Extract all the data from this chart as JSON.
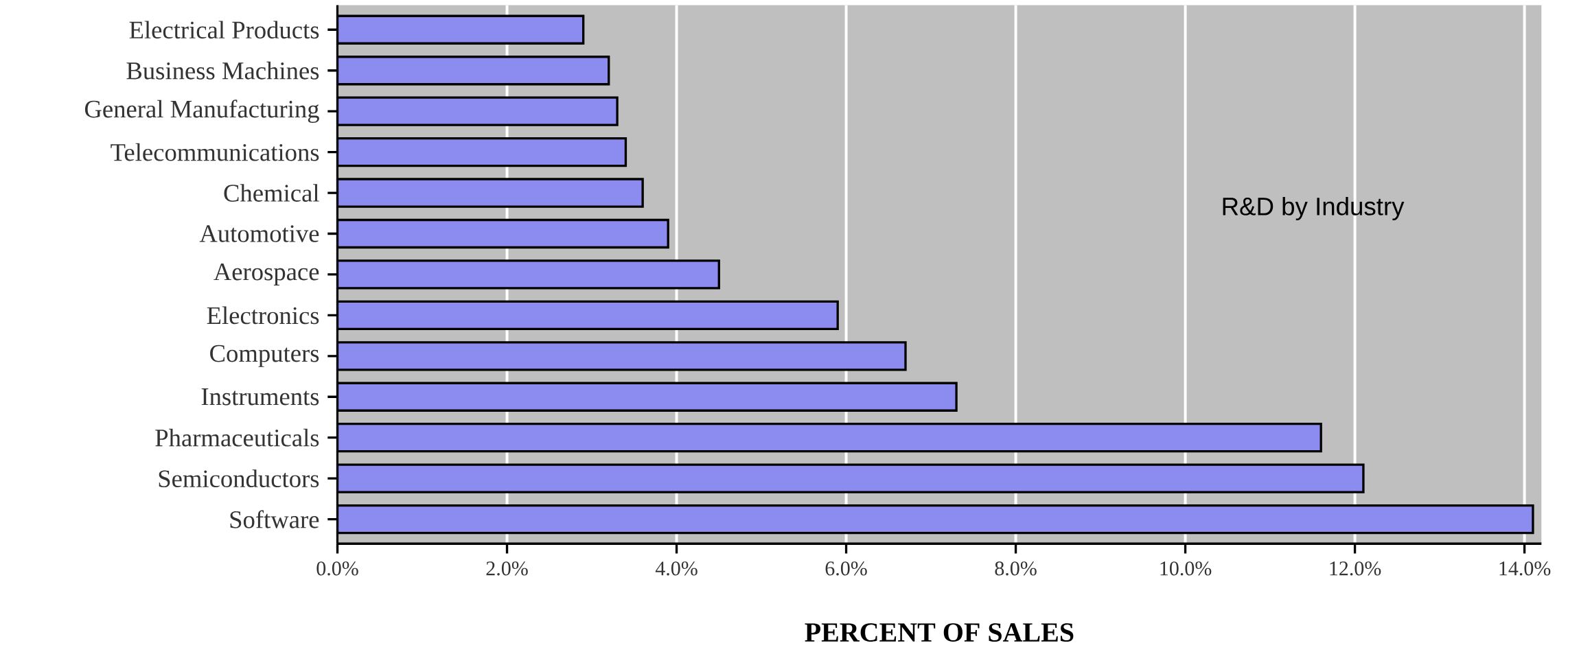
{
  "chart_data": {
    "type": "bar",
    "orientation": "horizontal",
    "title": "R&D by Industry",
    "xlabel": "PERCENT OF SALES",
    "categories": [
      "Electrical Products",
      "Business Machines",
      "General Manufacturing",
      "Telecommunications",
      "Chemical",
      "Automotive",
      "Aerospace",
      "Electronics",
      "Computers",
      "Instruments",
      "Pharmaceuticals",
      "Semiconductors",
      "Software"
    ],
    "values": [
      2.9,
      3.2,
      3.3,
      3.4,
      3.6,
      3.9,
      4.5,
      5.9,
      6.7,
      7.3,
      11.6,
      12.1,
      14.1
    ],
    "color": "#8c8cf0",
    "xlim": [
      0,
      14.2
    ],
    "xticks": [
      {
        "value": 0,
        "label": "0.0%"
      },
      {
        "value": 2,
        "label": "2.0%"
      },
      {
        "value": 4,
        "label": "4.0%"
      },
      {
        "value": 6,
        "label": "6.0%"
      },
      {
        "value": 8,
        "label": "8.0%"
      },
      {
        "value": 10,
        "label": "10.0%"
      },
      {
        "value": 12,
        "label": "12.0%"
      },
      {
        "value": 14,
        "label": "14.0%"
      }
    ],
    "grid": "x"
  }
}
